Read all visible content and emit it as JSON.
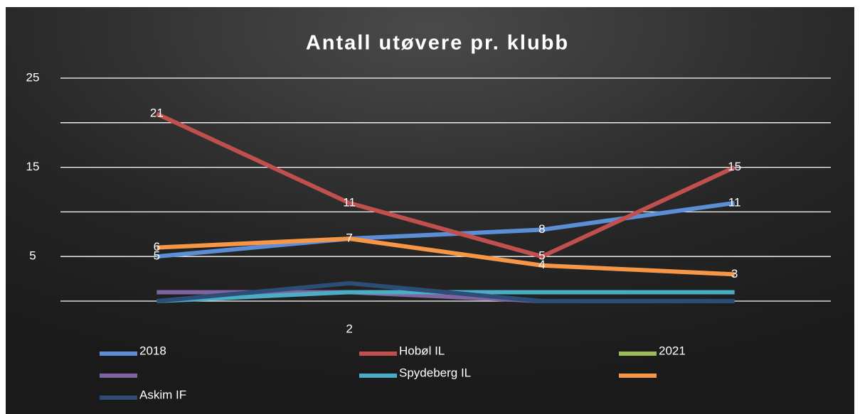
{
  "chart_data": {
    "type": "line",
    "title": "Antall utøvere pr. klubb",
    "categories": [
      null,
      "2",
      null,
      null
    ],
    "ylim": [
      0,
      25
    ],
    "yticks": [
      5,
      15,
      25
    ],
    "minor_gridlines": [
      0,
      10,
      20
    ],
    "grid": true,
    "series": [
      {
        "name": "2018",
        "color": "#5b8ed6",
        "values": [
          5,
          7,
          8,
          11
        ],
        "show_labels": true
      },
      {
        "name": "Hobøl IL",
        "color": "#c0504d",
        "values": [
          21,
          11,
          5,
          15
        ],
        "show_labels": true
      },
      {
        "name": "2021",
        "color": "#9bbb59",
        "values": [
          null,
          null,
          null,
          null
        ]
      },
      {
        "name": null,
        "color": "#8064a2",
        "values": [
          1,
          1,
          0,
          0
        ]
      },
      {
        "name": "Spydeberg IL",
        "color": "#4bacc6",
        "values": [
          0,
          1,
          1,
          1
        ]
      },
      {
        "name": null,
        "color": "#f79646",
        "values": [
          6,
          7,
          4,
          3
        ],
        "show_labels": true
      },
      {
        "name": "Askim IF",
        "color": "#2c4d75",
        "values": [
          0,
          2,
          0,
          0
        ]
      }
    ]
  }
}
